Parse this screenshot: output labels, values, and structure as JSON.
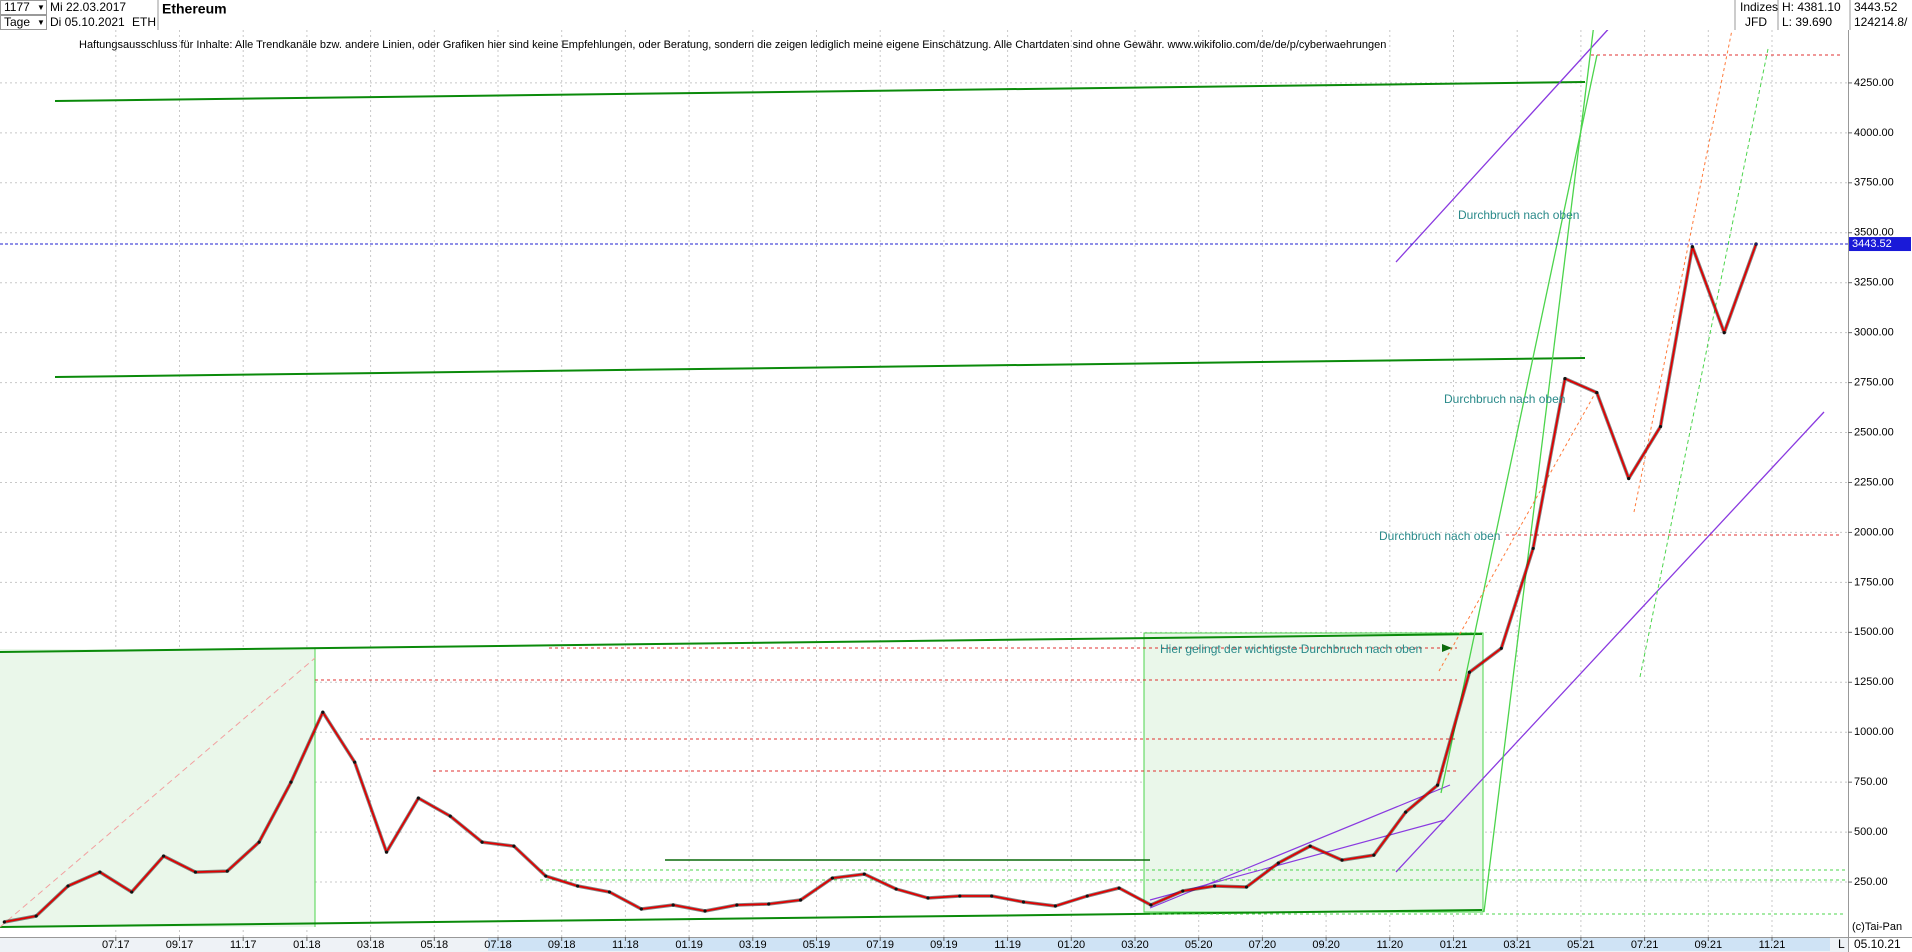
{
  "header": {
    "bars": "1177",
    "start": "Mi 22.03.2017",
    "period": "Tage",
    "end": "Di 05.10.2021",
    "name": "Ethereum",
    "symbol": "ETH",
    "market": "Indizes",
    "source": "JFD",
    "high": "H: 4381.10",
    "low": "L: 39.690",
    "volume": "124214.8/"
  },
  "chart_data": {
    "type": "line",
    "disclaimer": "Haftungsausschluss für Inhalte: Alle Trendkanäle bzw. andere Linien, oder Grafiken hier sind keine Empfehlungen, oder Beratung, sondern die zeigen lediglich meine eigene Einschätzung. Alle Chartdaten sind ohne Gewähr.  www.wikifolio.com/de/de/p/cyberwaehrungen",
    "annotations": [
      "Durchbruch nach oben",
      "Durchbruch nach oben",
      "Durchbruch nach oben",
      "Hier gelingt der wichtigste Durchbruch nach oben"
    ],
    "categories": [
      null,
      null,
      null,
      null,
      "07.17",
      null,
      "09.17",
      null,
      "11.17",
      null,
      "01.18",
      null,
      "03.18",
      null,
      "05.18",
      null,
      "07.18",
      null,
      "09.18",
      null,
      "11.18",
      null,
      "01.19",
      null,
      "03.19",
      null,
      "05.19",
      null,
      "07.19",
      null,
      "09.19",
      null,
      "11.19",
      null,
      "01.20",
      null,
      "03.20",
      null,
      "05.20",
      null,
      "07.20",
      null,
      "09.20",
      null,
      "11.20",
      null,
      "01.21",
      null,
      "03.21",
      null,
      "05.21",
      null,
      "07.21",
      null,
      "09.21",
      null,
      "11.21"
    ],
    "values": [
      50,
      80,
      230,
      300,
      200,
      380,
      300,
      305,
      450,
      750,
      1100,
      850,
      400,
      670,
      580,
      450,
      430,
      280,
      230,
      200,
      115,
      135,
      105,
      135,
      140,
      160,
      270,
      290,
      215,
      170,
      180,
      180,
      150,
      130,
      180,
      220,
      135,
      205,
      230,
      225,
      345,
      430,
      360,
      385,
      600,
      735,
      1300,
      1420,
      1920,
      2770,
      2700,
      2270,
      2530,
      3430,
      3000,
      3443.52,
      null
    ],
    "color": "#e00000",
    "last_price": 3443.52,
    "ylim": [
      0,
      4650
    ],
    "yticks": [
      {
        "value": 250,
        "label": "250.00"
      },
      {
        "value": 500,
        "label": "500.00"
      },
      {
        "value": 750,
        "label": "750.00"
      },
      {
        "value": 1000,
        "label": "1000.00"
      },
      {
        "value": 1250,
        "label": "1250.00"
      },
      {
        "value": 1500,
        "label": "1500.00"
      },
      {
        "value": 1750,
        "label": "1750.00"
      },
      {
        "value": 2000,
        "label": "2000.00"
      },
      {
        "value": 2250,
        "label": "2250.00"
      },
      {
        "value": 2500,
        "label": "2500.00"
      },
      {
        "value": 2750,
        "label": "2750.00"
      },
      {
        "value": 3000,
        "label": "3000.00"
      },
      {
        "value": 3250,
        "label": "3250.00"
      },
      {
        "value": 3500,
        "label": "3500.00"
      },
      {
        "value": 3750,
        "label": "3750.00"
      },
      {
        "value": 4000,
        "label": "4000.00"
      },
      {
        "value": 4250,
        "label": "4250.00"
      }
    ],
    "grid": true
  },
  "footer": {
    "copyright": "(c)Tai-Pan",
    "date": "05.10.21",
    "scale": "L"
  }
}
